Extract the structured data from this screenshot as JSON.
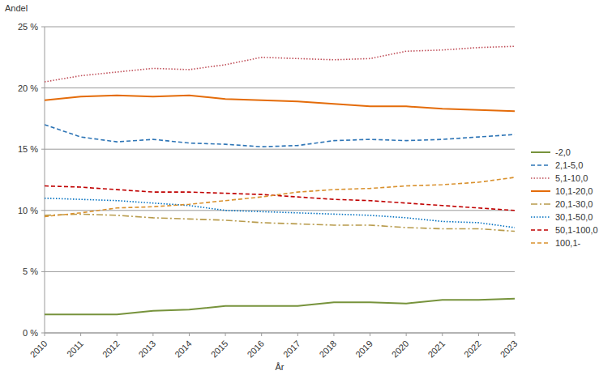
{
  "chart_data": {
    "type": "line",
    "y_label": "Andel",
    "x_label": "År",
    "categories": [
      "2010",
      "2011",
      "2012",
      "2013",
      "2014",
      "2015",
      "2016",
      "2017",
      "2018",
      "2019",
      "2020",
      "2021",
      "2022",
      "2023"
    ],
    "ylim": [
      0,
      25
    ],
    "yticks": [
      {
        "value": 0,
        "label": "0 %"
      },
      {
        "value": 5,
        "label": "5 %"
      },
      {
        "value": 10,
        "label": "10 %"
      },
      {
        "value": 15,
        "label": "15 %"
      },
      {
        "value": 20,
        "label": "20 %"
      },
      {
        "value": 25,
        "label": "25 %"
      }
    ],
    "grid": true,
    "legend": "right",
    "series": [
      {
        "name": "-2,0",
        "color": "#77933c",
        "line_style": "solid",
        "values": [
          1.5,
          1.5,
          1.5,
          1.8,
          1.9,
          2.2,
          2.2,
          2.2,
          2.5,
          2.5,
          2.4,
          2.7,
          2.7,
          2.8
        ]
      },
      {
        "name": "2,1-5,0",
        "color": "#2e75b6",
        "line_style": "dashed",
        "values": [
          17.0,
          16.0,
          15.6,
          15.8,
          15.5,
          15.4,
          15.2,
          15.3,
          15.7,
          15.8,
          15.7,
          15.8,
          16.0,
          16.2
        ]
      },
      {
        "name": "5,1-10,0",
        "color": "#c0505a",
        "line_style": "dotted",
        "values": [
          20.5,
          21.0,
          21.3,
          21.6,
          21.5,
          21.9,
          22.5,
          22.4,
          22.3,
          22.4,
          23.0,
          23.1,
          23.3,
          23.4
        ]
      },
      {
        "name": "10,1-20,0",
        "color": "#e46c0a",
        "line_style": "solid",
        "values": [
          19.0,
          19.3,
          19.4,
          19.3,
          19.4,
          19.1,
          19.0,
          18.9,
          18.7,
          18.5,
          18.5,
          18.3,
          18.2,
          18.1
        ]
      },
      {
        "name": "20,1-30,0",
        "color": "#b89b4c",
        "line_style": "dash-dot",
        "values": [
          9.6,
          9.7,
          9.6,
          9.4,
          9.3,
          9.2,
          9.0,
          8.9,
          8.8,
          8.8,
          8.6,
          8.5,
          8.5,
          8.3
        ]
      },
      {
        "name": "30,1-50,0",
        "color": "#0070c0",
        "line_style": "dotted",
        "values": [
          11.0,
          10.9,
          10.8,
          10.6,
          10.4,
          10.0,
          9.9,
          9.8,
          9.7,
          9.6,
          9.4,
          9.1,
          9.0,
          8.6
        ]
      },
      {
        "name": "50,1-100,0",
        "color": "#c00000",
        "line_style": "dashed",
        "values": [
          12.0,
          11.9,
          11.7,
          11.5,
          11.5,
          11.4,
          11.3,
          11.1,
          10.9,
          10.8,
          10.6,
          10.4,
          10.2,
          10.0
        ]
      },
      {
        "name": "100,1-",
        "color": "#d9912e",
        "line_style": "dashed",
        "values": [
          9.5,
          9.8,
          10.2,
          10.3,
          10.5,
          10.8,
          11.1,
          11.5,
          11.7,
          11.8,
          12.0,
          12.1,
          12.3,
          12.7
        ]
      }
    ]
  }
}
